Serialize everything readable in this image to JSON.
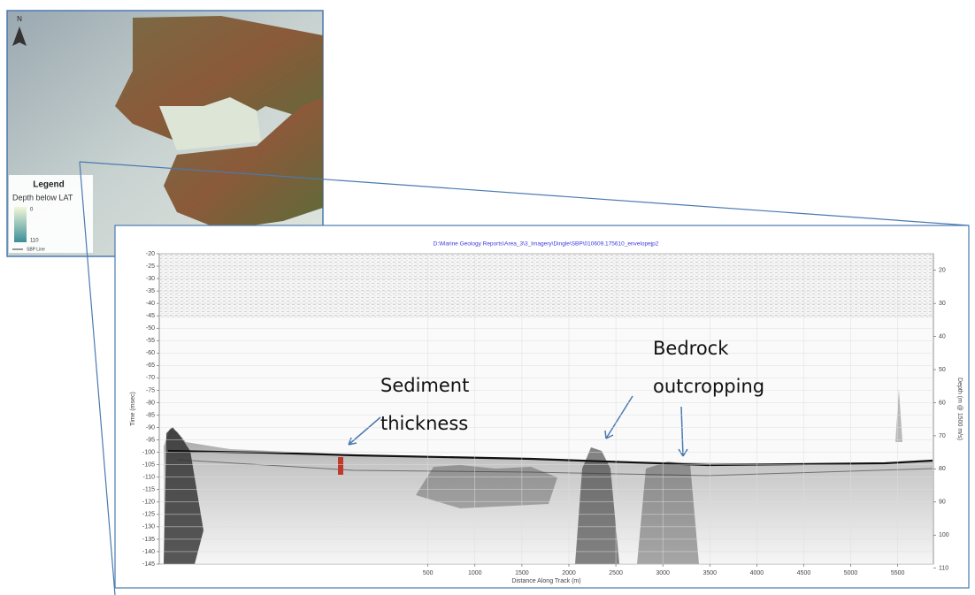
{
  "map": {
    "north": "N",
    "legend": {
      "title": "Legend",
      "subtitle": "Depth below LAT",
      "top_value": "0",
      "bottom_value": "110",
      "line": "SBP Line"
    }
  },
  "profile": {
    "title": "D:\\Marine Geology Reports\\Area_3\\3_Imagery\\Dingle\\SBP\\010609.175610_envelopejp2",
    "y_label": "Time (msec)",
    "y2_label": "Depth (m @ 1500 m/s)",
    "x_label": "Distance Along Track (m)",
    "ylim": [
      -20,
      -145
    ],
    "yticks": [
      -20,
      -25,
      -30,
      -35,
      -40,
      -45,
      -50,
      -55,
      -60,
      -65,
      -70,
      -75,
      -80,
      -85,
      -90,
      -95,
      -100,
      -105,
      -110,
      -115,
      -120,
      -125,
      -130,
      -135,
      -140,
      -145
    ],
    "y2lim": [
      15,
      108.75
    ],
    "y2ticks": [
      20,
      30,
      40,
      50,
      60,
      70,
      80,
      90,
      100,
      110
    ],
    "xlim": [
      -2360,
      5880
    ],
    "xticks": [
      500,
      1000,
      1500,
      2000,
      2500,
      3000,
      3500,
      4000,
      4500,
      5000,
      5500
    ]
  },
  "annotations": [
    {
      "label": "Sediment thickness"
    },
    {
      "label": "Bedrock outcropping"
    }
  ]
}
